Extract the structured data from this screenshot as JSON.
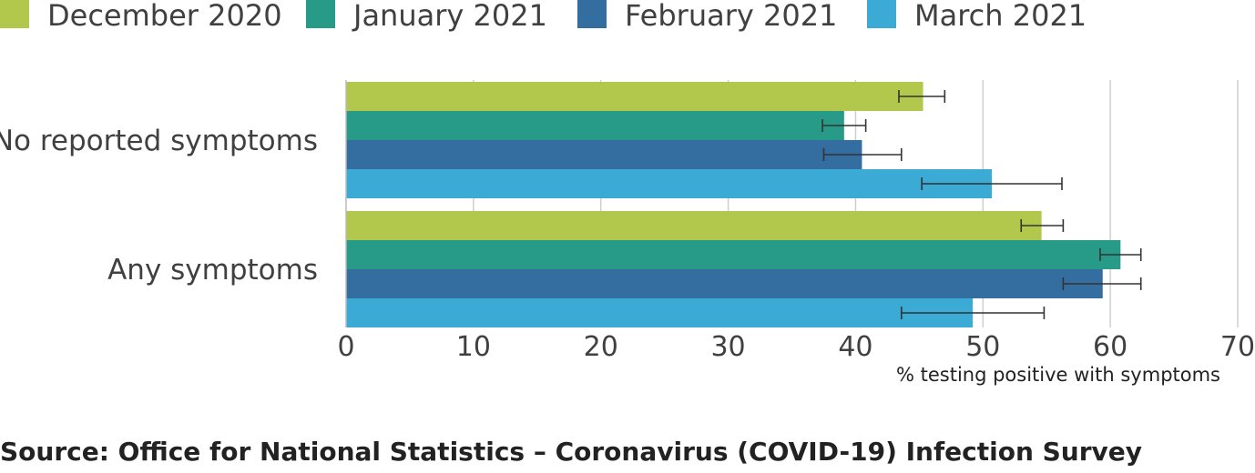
{
  "legend": [
    {
      "label": "December 2020",
      "color": "#b2c84c"
    },
    {
      "label": "January 2021",
      "color": "#279b87"
    },
    {
      "label": "February 2021",
      "color": "#346d9f"
    },
    {
      "label": "March 2021",
      "color": "#3babd6"
    }
  ],
  "chart_data": {
    "type": "bar",
    "orientation": "horizontal",
    "categories": [
      "No reported symptoms",
      "Any symptoms"
    ],
    "series": [
      {
        "name": "December 2020",
        "color": "#b2c84c",
        "values": [
          45.3,
          54.6
        ],
        "error_low": [
          43.4,
          53.0
        ],
        "error_high": [
          47.0,
          56.3
        ]
      },
      {
        "name": "January 2021",
        "color": "#279b87",
        "values": [
          39.1,
          60.8
        ],
        "error_low": [
          37.4,
          59.2
        ],
        "error_high": [
          40.8,
          62.4
        ]
      },
      {
        "name": "February 2021",
        "color": "#346d9f",
        "values": [
          40.5,
          59.4
        ],
        "error_low": [
          37.5,
          56.3
        ],
        "error_high": [
          43.6,
          62.4
        ]
      },
      {
        "name": "March 2021",
        "color": "#3babd6",
        "values": [
          50.7,
          49.2
        ],
        "error_low": [
          45.2,
          43.6
        ],
        "error_high": [
          56.2,
          54.8
        ]
      }
    ],
    "xlim": [
      0,
      70
    ],
    "xticks": [
      0,
      10,
      20,
      30,
      40,
      50,
      60,
      70
    ],
    "xlabel": "% testing positive with symptoms",
    "grid": true,
    "legend_position": "top"
  },
  "source": "Source: Office for National Statistics – Coronavirus (COVID-19) Infection Survey"
}
